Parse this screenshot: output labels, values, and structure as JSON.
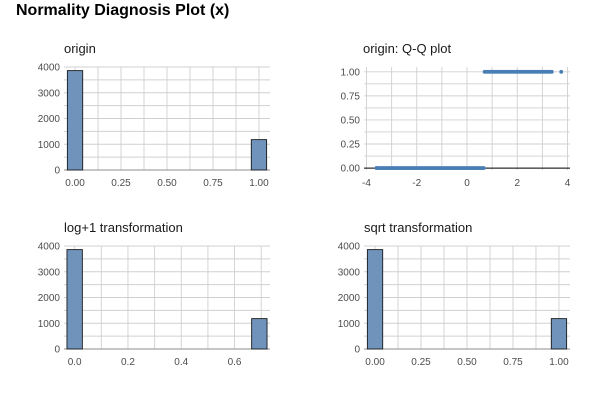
{
  "title": "Normality Diagnosis Plot (x)",
  "chart_data": [
    {
      "id": "origin",
      "type": "bar",
      "title": "origin",
      "x_ticks": [
        "0.00",
        "0.25",
        "0.50",
        "0.75",
        "1.00"
      ],
      "x_tick_values": [
        0,
        0.25,
        0.5,
        0.75,
        1
      ],
      "y_ticks": [
        "0",
        "1000",
        "2000",
        "3000",
        "4000"
      ],
      "y_tick_values": [
        0,
        1000,
        2000,
        3000,
        4000
      ],
      "xlim": [
        -0.06,
        1.06
      ],
      "ylim": [
        0,
        4000
      ],
      "bin_width": 0.0833,
      "bins": [
        {
          "x": 0,
          "count": 3860
        },
        {
          "x": 1,
          "count": 1180
        }
      ],
      "grid": true
    },
    {
      "id": "qqplot",
      "type": "scatter",
      "title": "origin: Q-Q plot",
      "x_ticks": [
        "-4",
        "-2",
        "0",
        "2",
        "4"
      ],
      "x_tick_values": [
        -4,
        -2,
        0,
        2,
        4
      ],
      "y_ticks": [
        "0.00",
        "0.25",
        "0.50",
        "0.75",
        "1.00"
      ],
      "y_tick_values": [
        0,
        0.25,
        0.5,
        0.75,
        1
      ],
      "xlim": [
        -4.1,
        4.1
      ],
      "ylim": [
        -0.02,
        1.05
      ],
      "groups": [
        {
          "y": 0,
          "x_range": [
            -3.6,
            0.68
          ],
          "outliers": [
            -3.6
          ]
        },
        {
          "y": 1,
          "x_range": [
            0.7,
            3.4
          ],
          "outliers": [
            3.75
          ]
        }
      ],
      "reference_line": {
        "y": 0,
        "x_range": [
          -4.1,
          4.1
        ]
      },
      "grid": true
    },
    {
      "id": "log1p",
      "type": "bar",
      "title": "log+1 transformation",
      "x_ticks": [
        "0.0",
        "0.2",
        "0.4",
        "0.6"
      ],
      "x_tick_values": [
        0,
        0.2,
        0.4,
        0.6
      ],
      "y_ticks": [
        "0",
        "1000",
        "2000",
        "3000",
        "4000"
      ],
      "y_tick_values": [
        0,
        1000,
        2000,
        3000,
        4000
      ],
      "xlim": [
        -0.04,
        0.733
      ],
      "ylim": [
        0,
        4000
      ],
      "bin_width": 0.0578,
      "bins": [
        {
          "x": 0,
          "count": 3860
        },
        {
          "x": 0.693,
          "count": 1180
        }
      ],
      "grid": true
    },
    {
      "id": "sqrt",
      "type": "bar",
      "title": "sqrt transformation",
      "x_ticks": [
        "0.00",
        "0.25",
        "0.50",
        "0.75",
        "1.00"
      ],
      "x_tick_values": [
        0,
        0.25,
        0.5,
        0.75,
        1
      ],
      "y_ticks": [
        "0",
        "1000",
        "2000",
        "3000",
        "4000"
      ],
      "y_tick_values": [
        0,
        1000,
        2000,
        3000,
        4000
      ],
      "xlim": [
        -0.06,
        1.06
      ],
      "ylim": [
        0,
        4000
      ],
      "bin_width": 0.0833,
      "bins": [
        {
          "x": 0,
          "count": 3860
        },
        {
          "x": 1,
          "count": 1180
        }
      ],
      "grid": true
    }
  ]
}
